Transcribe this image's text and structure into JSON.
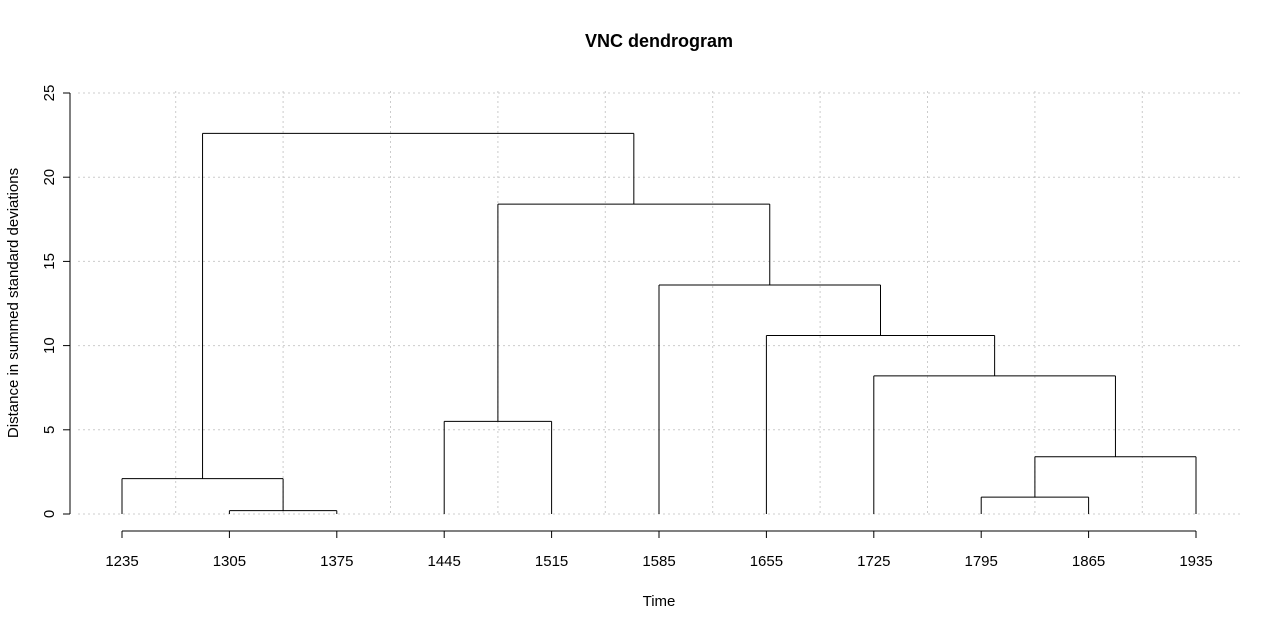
{
  "chart_data": {
    "type": "dendrogram",
    "title": "VNC dendrogram",
    "xlabel": "Time",
    "ylabel": "Distance in summed standard deviations",
    "leaves": [
      "1235",
      "1305",
      "1375",
      "1445",
      "1515",
      "1585",
      "1655",
      "1725",
      "1795",
      "1865",
      "1935"
    ],
    "ylim": [
      0,
      25
    ],
    "yticks": [
      "0",
      "5",
      "10",
      "15",
      "20",
      "25"
    ],
    "grid": true,
    "merges": [
      {
        "left": "1305",
        "right": "1375",
        "height": 0.2
      },
      {
        "left": "1795",
        "right": "1865",
        "height": 1.0
      },
      {
        "left": "1235",
        "right": "1305–1375",
        "height": 2.1
      },
      {
        "left": "1795–1865",
        "right": "1935",
        "height": 3.4
      },
      {
        "left": "1445",
        "right": "1515",
        "height": 5.5
      },
      {
        "left": "1725",
        "right": "1795–1935",
        "height": 8.2
      },
      {
        "left": "1655",
        "right": "1725–1935",
        "height": 10.6
      },
      {
        "left": "1585",
        "right": "1655–1935",
        "height": 13.6
      },
      {
        "left": "1445–1515",
        "right": "1585–1935",
        "height": 18.4
      },
      {
        "left": "1235–1375",
        "right": "1445–1935",
        "height": 22.6
      }
    ]
  }
}
